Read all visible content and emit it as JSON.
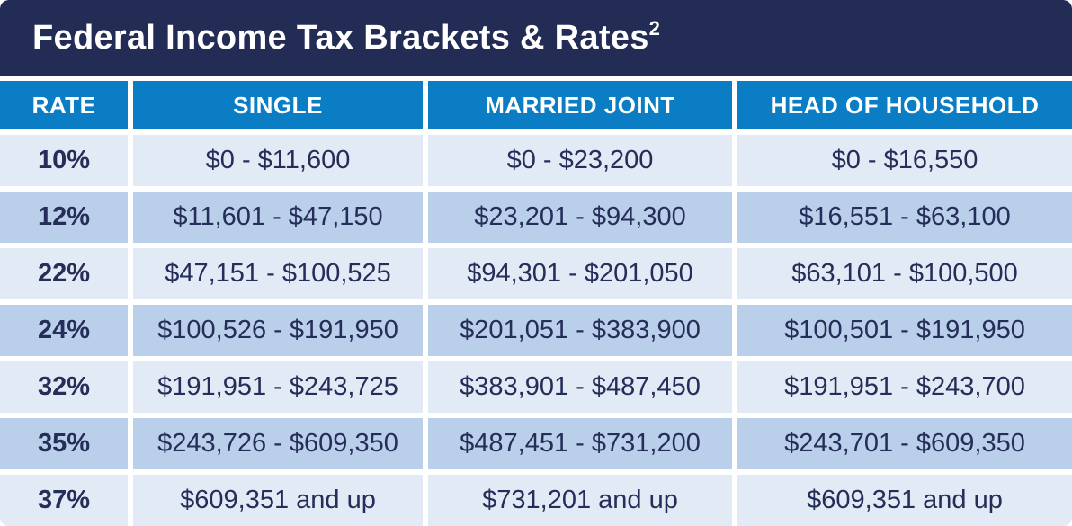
{
  "title": {
    "text": "Federal Income Tax Brackets & Rates",
    "superscript": "2"
  },
  "colors": {
    "title_bar_navy": "#222c54",
    "header_blue": "#0a7dc4",
    "row_light": "#e2eaf6",
    "row_dark": "#b9cfea",
    "text_navy": "#252e58",
    "gutter_white": "#ffffff"
  },
  "table": {
    "headers": [
      "RATE",
      "SINGLE",
      "MARRIED JOINT",
      "HEAD OF HOUSEHOLD"
    ],
    "rows": [
      {
        "rate": "10%",
        "single": "$0 - $11,600",
        "married_joint": "$0 - $23,200",
        "head_of_household": "$0 - $16,550"
      },
      {
        "rate": "12%",
        "single": "$11,601 - $47,150",
        "married_joint": "$23,201 - $94,300",
        "head_of_household": "$16,551 - $63,100"
      },
      {
        "rate": "22%",
        "single": "$47,151 - $100,525",
        "married_joint": "$94,301 - $201,050",
        "head_of_household": "$63,101 - $100,500"
      },
      {
        "rate": "24%",
        "single": "$100,526 - $191,950",
        "married_joint": "$201,051 - $383,900",
        "head_of_household": "$100,501 - $191,950"
      },
      {
        "rate": "32%",
        "single": "$191,951 - $243,725",
        "married_joint": "$383,901 - $487,450",
        "head_of_household": "$191,951 - $243,700"
      },
      {
        "rate": "35%",
        "single": "$243,726 - $609,350",
        "married_joint": "$487,451 - $731,200",
        "head_of_household": "$243,701 - $609,350"
      },
      {
        "rate": "37%",
        "single": "$609,351 and up",
        "married_joint": "$731,201 and up",
        "head_of_household": "$609,351 and up"
      }
    ]
  },
  "chart_data": {
    "type": "table",
    "title": "Federal Income Tax Brackets & Rates",
    "columns": [
      "RATE",
      "SINGLE",
      "MARRIED JOINT",
      "HEAD OF HOUSEHOLD"
    ],
    "rows": [
      [
        "10%",
        "$0 - $11,600",
        "$0 - $23,200",
        "$0 - $16,550"
      ],
      [
        "12%",
        "$11,601 - $47,150",
        "$23,201 - $94,300",
        "$16,551 - $63,100"
      ],
      [
        "22%",
        "$47,151 - $100,525",
        "$94,301 - $201,050",
        "$63,101 - $100,500"
      ],
      [
        "24%",
        "$100,526 - $191,950",
        "$201,051 - $383,900",
        "$100,501 - $191,950"
      ],
      [
        "32%",
        "$191,951 - $243,725",
        "$383,901 - $487,450",
        "$191,951 - $243,700"
      ],
      [
        "35%",
        "$243,726 - $609,350",
        "$487,451 - $731,200",
        "$243,701 - $609,350"
      ],
      [
        "37%",
        "$609,351 and up",
        "$731,201 and up",
        "$609,351 and up"
      ]
    ]
  }
}
